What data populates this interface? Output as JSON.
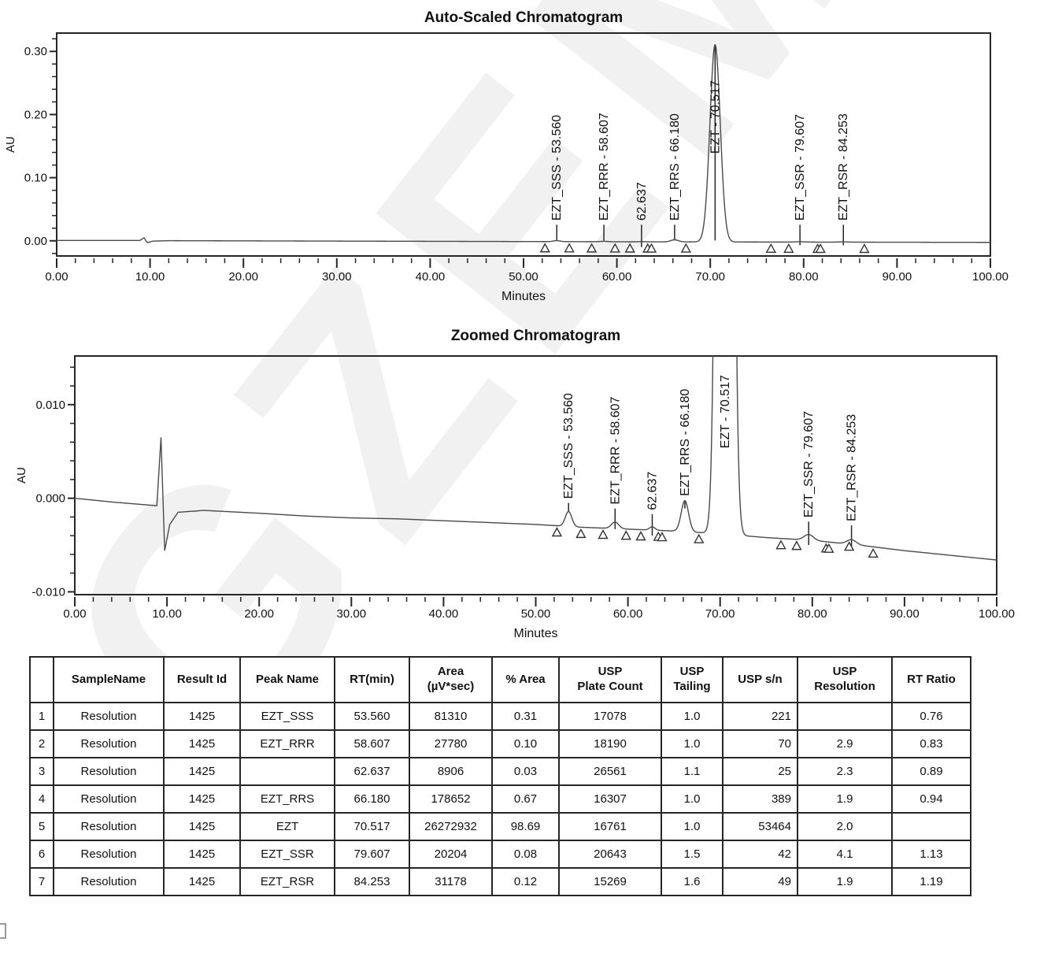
{
  "page": {
    "watermark_text": "GZEM",
    "accent_color": "#262626",
    "trace_color": "#4a4a4a"
  },
  "chart_data": [
    {
      "type": "line",
      "title": "Auto-Scaled Chromatogram",
      "xlabel": "Minutes",
      "ylabel": "AU",
      "xlim": [
        0,
        100
      ],
      "ylim": [
        -0.024,
        0.329
      ],
      "x_major_ticks": [
        0,
        10,
        20,
        30,
        40,
        50,
        60,
        70,
        80,
        90,
        100
      ],
      "x_tick_labels": [
        "0.00",
        "10.00",
        "20.00",
        "30.00",
        "40.00",
        "50.00",
        "60.00",
        "70.00",
        "80.00",
        "90.00",
        "100.00"
      ],
      "x_minor_step": 2,
      "y_major_ticks": [
        0.0,
        0.1,
        0.2,
        0.3
      ],
      "y_tick_labels": [
        "0.00",
        "0.10",
        "0.20",
        "0.30"
      ],
      "y_minor_step": 0.02,
      "grid": false,
      "baseline": [
        [
          0,
          0.0005
        ],
        [
          8.9,
          0.0005
        ],
        [
          9.35,
          0.0048
        ],
        [
          9.7,
          -0.0028
        ],
        [
          10.3,
          -0.0005
        ],
        [
          12,
          0.0002
        ],
        [
          40,
          -0.0008
        ],
        [
          60,
          -0.0015
        ],
        [
          80,
          -0.002
        ],
        [
          100,
          -0.0025
        ]
      ],
      "peaks": [
        {
          "rt": 53.56,
          "height": 0.0016,
          "sigma": 0.35
        },
        {
          "rt": 58.607,
          "height": 0.0007,
          "sigma": 0.4
        },
        {
          "rt": 62.637,
          "height": 0.00035,
          "sigma": 0.3
        },
        {
          "rt": 66.18,
          "height": 0.0033,
          "sigma": 0.4
        },
        {
          "rt": 70.517,
          "height": 0.3125,
          "sigma": 0.55
        },
        {
          "rt": 79.607,
          "height": 0.0006,
          "sigma": 0.5
        },
        {
          "rt": 84.253,
          "height": 0.0005,
          "sigma": 0.5
        }
      ],
      "peak_labels": [
        {
          "rt": 53.56,
          "text": "EZT_SSS - 53.560",
          "text_bottom": 0.027,
          "line_top": 0.0255,
          "line_bottom": 0.0005
        },
        {
          "rt": 58.607,
          "text": "EZT_RRR - 58.607",
          "text_bottom": 0.027,
          "line_top": 0.0255,
          "line_bottom": 0.0005
        },
        {
          "rt": 62.637,
          "text": "62.637",
          "text_bottom": 0.027,
          "line_top": 0.0255,
          "line_bottom": -0.01
        },
        {
          "rt": 66.18,
          "text": "EZT_RRS - 66.180",
          "text_bottom": 0.027,
          "line_top": 0.0255,
          "line_bottom": 0.0005
        },
        {
          "rt": 70.517,
          "text": "EZT - 70.517",
          "text_bottom": 0.133,
          "line_top": 0.31,
          "line_bottom": 0.0005
        },
        {
          "rt": 79.607,
          "text": "EZT_SSR - 79.607",
          "text_bottom": 0.027,
          "line_top": 0.0255,
          "line_bottom": -0.007
        },
        {
          "rt": 84.253,
          "text": "EZT_RSR - 84.253",
          "text_bottom": 0.027,
          "line_top": 0.0255,
          "line_bottom": -0.007
        }
      ],
      "integration_markers": [
        52.3,
        54.9,
        57.3,
        59.8,
        61.4,
        63.3,
        63.7,
        67.4,
        76.5,
        78.4,
        81.5,
        81.8,
        86.5
      ]
    },
    {
      "type": "line",
      "title": "Zoomed Chromatogram",
      "xlabel": "Minutes",
      "ylabel": "AU",
      "xlim": [
        0,
        100
      ],
      "ylim": [
        -0.0103,
        0.0152
      ],
      "x_major_ticks": [
        0,
        10,
        20,
        30,
        40,
        50,
        60,
        70,
        80,
        90,
        100
      ],
      "x_tick_labels": [
        "0.00",
        "10.00",
        "20.00",
        "30.00",
        "40.00",
        "50.00",
        "60.00",
        "70.00",
        "80.00",
        "90.00",
        "100.00"
      ],
      "x_minor_step": 2,
      "y_major_ticks": [
        -0.01,
        0.0,
        0.01
      ],
      "y_tick_labels": [
        "-0.010",
        "0.000",
        "0.010"
      ],
      "y_minor_step": 0.002,
      "grid": false,
      "baseline": [
        [
          0,
          0.0
        ],
        [
          2,
          -0.0002
        ],
        [
          4,
          -0.0004
        ],
        [
          8.9,
          -0.0008
        ],
        [
          9.35,
          0.0065
        ],
        [
          9.75,
          -0.0056
        ],
        [
          10.3,
          -0.0028
        ],
        [
          11.2,
          -0.0015
        ],
        [
          14,
          -0.0013
        ],
        [
          20,
          -0.0016
        ],
        [
          25,
          -0.0019
        ],
        [
          30,
          -0.0021
        ],
        [
          35,
          -0.0022
        ],
        [
          40,
          -0.0024
        ],
        [
          45,
          -0.0026
        ],
        [
          50,
          -0.0028
        ],
        [
          55,
          -0.0031
        ],
        [
          60,
          -0.0033
        ],
        [
          65,
          -0.0035
        ],
        [
          70,
          -0.0038
        ],
        [
          75,
          -0.0042
        ],
        [
          80,
          -0.0045
        ],
        [
          85,
          -0.005
        ],
        [
          90,
          -0.0056
        ],
        [
          95,
          -0.0061
        ],
        [
          100,
          -0.0066
        ]
      ],
      "peaks": [
        {
          "rt": 53.56,
          "height": 0.0016,
          "sigma": 0.35
        },
        {
          "rt": 58.607,
          "height": 0.0007,
          "sigma": 0.4
        },
        {
          "rt": 62.637,
          "height": 0.00035,
          "sigma": 0.3
        },
        {
          "rt": 66.18,
          "height": 0.0033,
          "sigma": 0.4
        },
        {
          "rt": 70.517,
          "height": 0.3125,
          "sigma": 0.55
        },
        {
          "rt": 79.607,
          "height": 0.0006,
          "sigma": 0.5
        },
        {
          "rt": 84.253,
          "height": 0.0005,
          "sigma": 0.5
        }
      ],
      "peak_labels": [
        {
          "rt": 53.56,
          "text": "EZT_SSS - 53.560",
          "text_bottom": -0.0004,
          "line_top": -0.0005,
          "line_bottom": -0.0014
        },
        {
          "rt": 58.607,
          "text": "EZT_RRR - 58.607",
          "text_bottom": -0.001,
          "line_top": -0.0011,
          "line_bottom": -0.0033
        },
        {
          "rt": 62.637,
          "text": "62.637",
          "text_bottom": -0.0016,
          "line_top": -0.0017,
          "line_bottom": -0.004
        },
        {
          "rt": 66.18,
          "text": "EZT_RRS - 66.180",
          "text_bottom": -0.0001,
          "line_top": -0.0002,
          "line_bottom": -0.0011
        },
        {
          "rt": 70.517,
          "text": "EZT - 70.517",
          "text_bottom": 0.005,
          "line_top": 0.005,
          "line_bottom": 0.005
        },
        {
          "rt": 79.607,
          "text": "EZT_SSR - 79.607",
          "text_bottom": -0.0024,
          "line_top": -0.0025,
          "line_bottom": -0.005
        },
        {
          "rt": 84.253,
          "text": "EZT_RSR - 84.253",
          "text_bottom": -0.0028,
          "line_top": -0.0029,
          "line_bottom": -0.0055
        }
      ],
      "integration_markers": [
        52.3,
        54.9,
        57.3,
        59.8,
        61.4,
        63.3,
        63.7,
        67.7,
        76.6,
        78.3,
        81.5,
        81.8,
        84.0,
        86.6
      ]
    }
  ],
  "table": {
    "columns": [
      "",
      "SampleName",
      "Result Id",
      "Peak Name",
      "RT(min)",
      "Area\n(µV*sec)",
      "% Area",
      "USP\nPlate Count",
      "USP\nTailing",
      "USP s/n",
      "USP\nResolution",
      "RT Ratio"
    ],
    "align": [
      "c",
      "c",
      "c",
      "c",
      "c",
      "c",
      "c",
      "c",
      "c",
      "r",
      "c",
      "c"
    ],
    "rows": [
      {
        "num": "1",
        "cells": [
          "Resolution",
          "1425",
          "EZT_SSS",
          "53.560",
          "81310",
          "0.31",
          "17078",
          "1.0",
          "221",
          "",
          "0.76"
        ]
      },
      {
        "num": "2",
        "cells": [
          "Resolution",
          "1425",
          "EZT_RRR",
          "58.607",
          "27780",
          "0.10",
          "18190",
          "1.0",
          "70",
          "2.9",
          "0.83"
        ]
      },
      {
        "num": "3",
        "cells": [
          "Resolution",
          "1425",
          "",
          "62.637",
          "8906",
          "0.03",
          "26561",
          "1.1",
          "25",
          "2.3",
          "0.89"
        ]
      },
      {
        "num": "4",
        "cells": [
          "Resolution",
          "1425",
          "EZT_RRS",
          "66.180",
          "178652",
          "0.67",
          "16307",
          "1.0",
          "389",
          "1.9",
          "0.94"
        ]
      },
      {
        "num": "5",
        "cells": [
          "Resolution",
          "1425",
          "EZT",
          "70.517",
          "26272932",
          "98.69",
          "16761",
          "1.0",
          "53464",
          "2.0",
          ""
        ]
      },
      {
        "num": "6",
        "cells": [
          "Resolution",
          "1425",
          "EZT_SSR",
          "79.607",
          "20204",
          "0.08",
          "20643",
          "1.5",
          "42",
          "4.1",
          "1.13"
        ]
      },
      {
        "num": "7",
        "cells": [
          "Resolution",
          "1425",
          "EZT_RSR",
          "84.253",
          "31178",
          "0.12",
          "15269",
          "1.6",
          "49",
          "1.9",
          "1.19"
        ]
      }
    ]
  }
}
